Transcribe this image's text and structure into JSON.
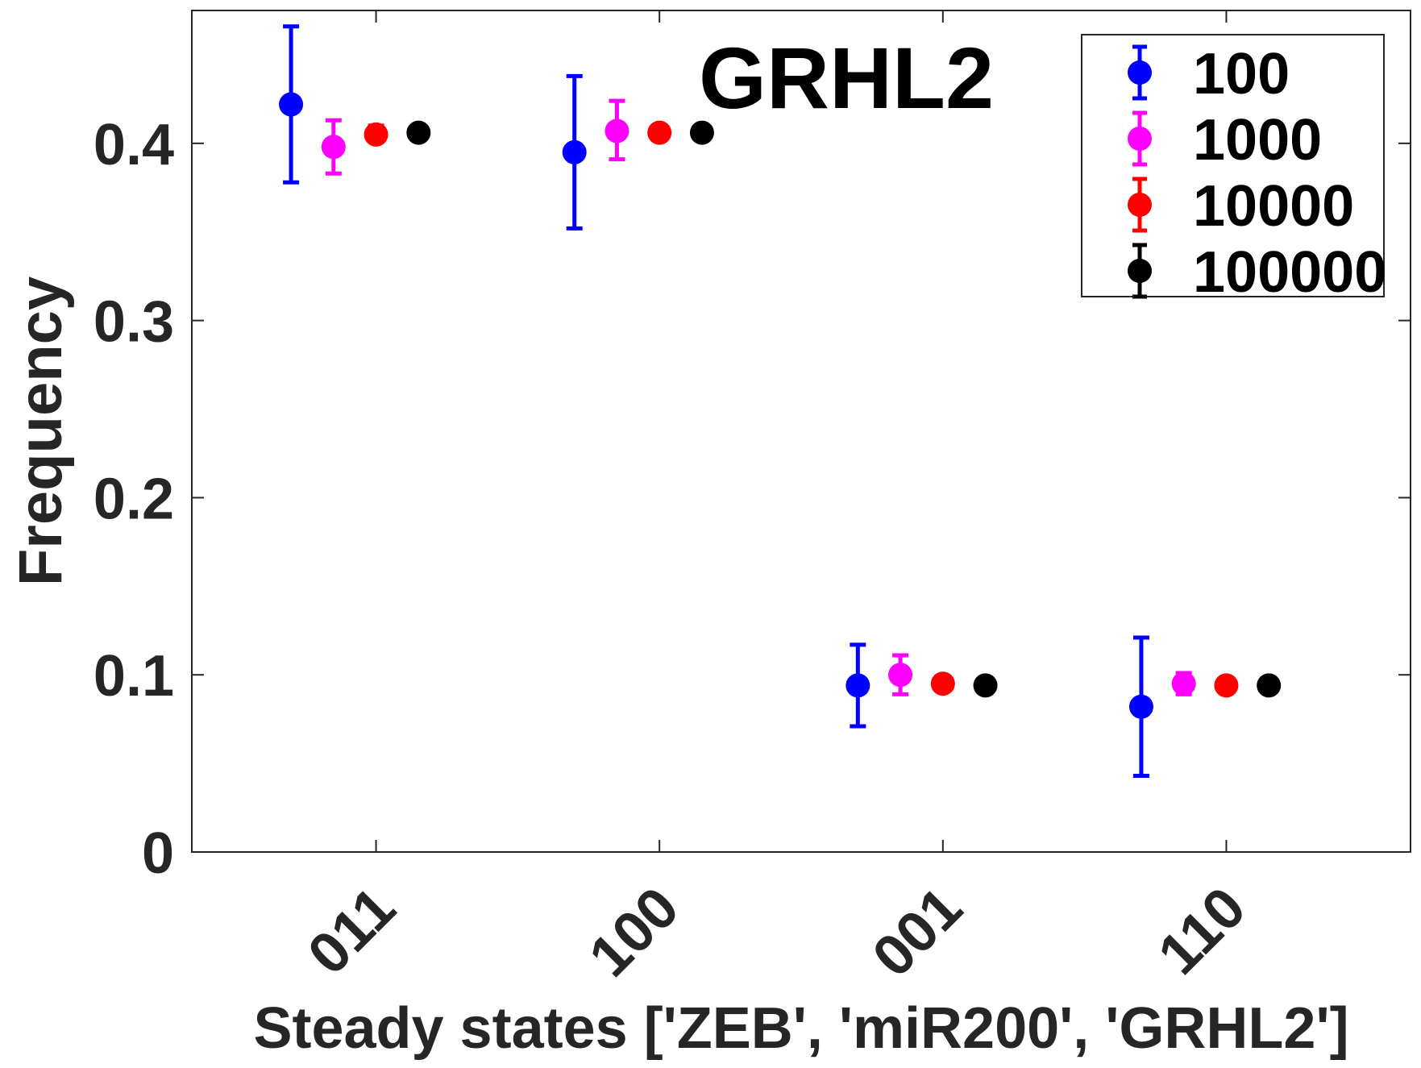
{
  "chart_data": {
    "type": "scatter",
    "title": "GRHL2",
    "xlabel": "Steady states ['ZEB', 'miR200', 'GRHL2']",
    "ylabel": "Frequency",
    "categories": [
      "011",
      "100",
      "001",
      "110"
    ],
    "ylim": [
      0,
      0.475
    ],
    "yticks": [
      "0",
      "0.1",
      "0.2",
      "0.3",
      "0.4"
    ],
    "grid": false,
    "legend_position": "top-right",
    "series": [
      {
        "name": "100",
        "color": "#0000ff",
        "offset": -0.3,
        "values": [
          0.422,
          0.395,
          0.094,
          0.082
        ],
        "lower": [
          0.378,
          0.352,
          0.071,
          0.043
        ],
        "upper": [
          0.466,
          0.438,
          0.117,
          0.121
        ]
      },
      {
        "name": "1000",
        "color": "#ff00ff",
        "offset": -0.15,
        "values": [
          0.398,
          0.407,
          0.1,
          0.095
        ],
        "lower": [
          0.383,
          0.391,
          0.089,
          0.089
        ],
        "upper": [
          0.413,
          0.424,
          0.111,
          0.101
        ]
      },
      {
        "name": "10000",
        "color": "#ff0000",
        "offset": 0.0,
        "values": [
          0.405,
          0.406,
          0.095,
          0.094
        ],
        "lower": [
          0.401,
          0.403,
          0.093,
          0.093
        ],
        "upper": [
          0.41,
          0.41,
          0.097,
          0.095
        ]
      },
      {
        "name": "100000",
        "color": "#000000",
        "offset": 0.15,
        "values": [
          0.406,
          0.406,
          0.094,
          0.094
        ],
        "lower": [
          0.406,
          0.406,
          0.094,
          0.094
        ],
        "upper": [
          0.406,
          0.406,
          0.094,
          0.094
        ]
      }
    ]
  }
}
